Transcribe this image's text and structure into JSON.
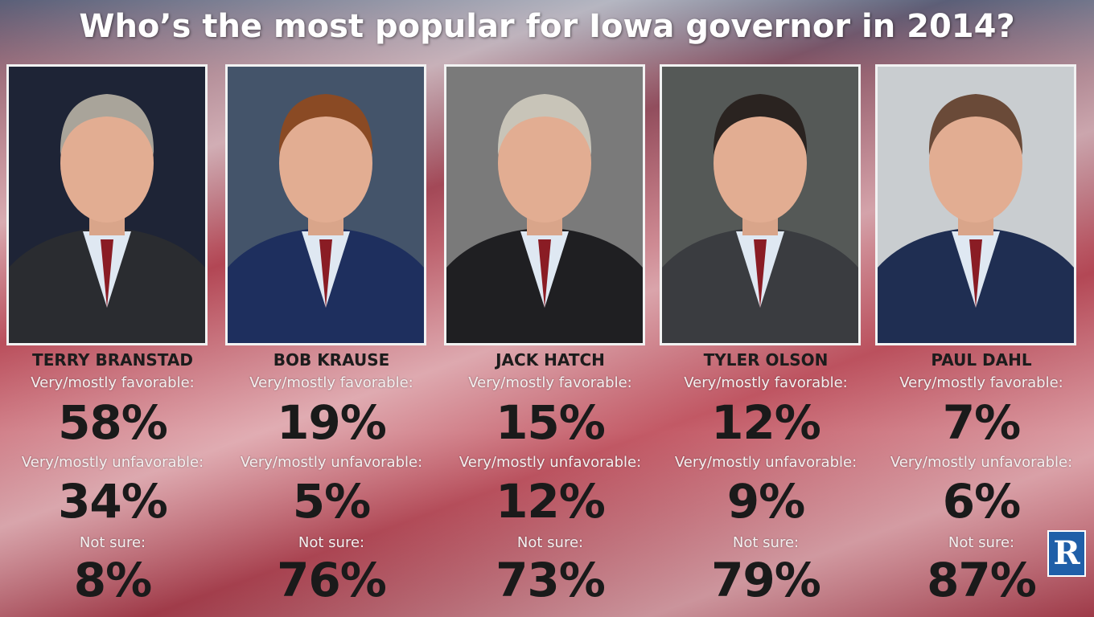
{
  "title": "Who’s the most popular for Iowa governor in 2014?",
  "labels": {
    "favorable": "Very/mostly favorable:",
    "unfavorable": "Very/mostly unfavorable:",
    "not_sure": "Not sure:"
  },
  "candidates": [
    {
      "name": "TERRY BRANSTAD",
      "favorable": "58%",
      "unfavorable": "34%",
      "not_sure": "8%"
    },
    {
      "name": "BOB KRAUSE",
      "favorable": "19%",
      "unfavorable": "5%",
      "not_sure": "76%"
    },
    {
      "name": "JACK HATCH",
      "favorable": "15%",
      "unfavorable": "12%",
      "not_sure": "73%"
    },
    {
      "name": "TYLER OLSON",
      "favorable": "12%",
      "unfavorable": "9%",
      "not_sure": "79%"
    },
    {
      "name": "PAUL DAHL",
      "favorable": "7%",
      "unfavorable": "6%",
      "not_sure": "87%"
    }
  ],
  "logo": "R"
}
